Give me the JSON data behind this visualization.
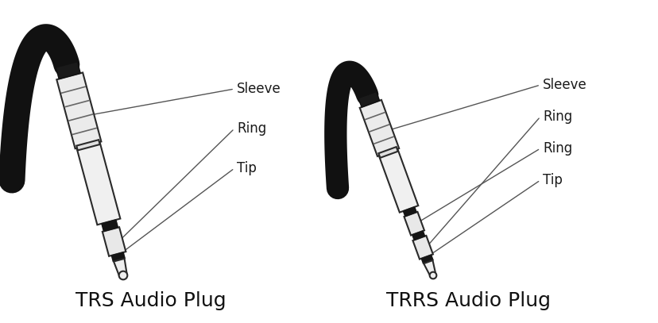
{
  "background_color": "#ffffff",
  "trs_label": "TRS Audio Plug",
  "trrs_label": "TRRS Audio Plug",
  "trs_parts": [
    "Sleeve",
    "Ring",
    "Tip"
  ],
  "trrs_parts": [
    "Sleeve",
    "Ring",
    "Ring",
    "Tip"
  ],
  "line_color": "#000000",
  "plug_fill": "#f5f5f5",
  "plug_outline": "#2a2a2a",
  "cable_color": "#111111",
  "band_color": "#111111",
  "label_fontsize": 12,
  "title_fontsize": 18,
  "annotation_color": "#555555"
}
